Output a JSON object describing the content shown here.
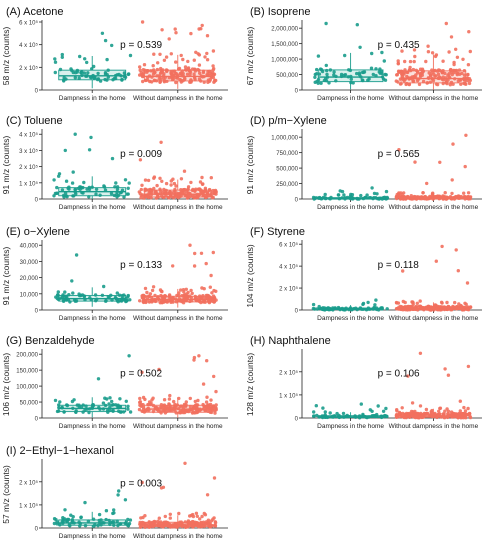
{
  "colors": {
    "group1": "#1a9c8c",
    "group1_fill": "#d8f0ec",
    "group2": "#f2705e",
    "group2_fill": "#fbe0dc",
    "axis": "#222222"
  },
  "chart_data": [
    {
      "type": "boxplot",
      "title": "(A) Acetone",
      "ylabel": "58 m/z (counts)",
      "categories": [
        "Dampness in the home",
        "Without dampness in the home"
      ],
      "yticks": [
        "0",
        "2 x 10⁵",
        "4 x 10⁵",
        "6 x 10⁵"
      ],
      "ylim": [
        0,
        600000
      ],
      "pvalue": "p = 0.539",
      "boxes": [
        {
          "q1": 90000,
          "median": 125000,
          "q3": 175000,
          "whisker_low": 15000,
          "whisker_high": 300000
        },
        {
          "q1": 80000,
          "median": 120000,
          "q3": 175000,
          "whisker_low": 10000,
          "whisker_high": 310000
        }
      ],
      "points_max": [
        500000,
        600000
      ]
    },
    {
      "type": "boxplot",
      "title": "(B) Isoprene",
      "ylabel": "67 m/z (counts)",
      "categories": [
        "Dampness in the home",
        "Without dampness in the home"
      ],
      "yticks": [
        "0",
        "500,000",
        "1,000,000",
        "1,500,000",
        "2,000,000"
      ],
      "ylim": [
        0,
        2200000
      ],
      "pvalue": "p = 0.435",
      "boxes": [
        {
          "q1": 270000,
          "median": 420000,
          "q3": 650000,
          "whisker_low": 20000,
          "whisker_high": 1200000
        },
        {
          "q1": 230000,
          "median": 370000,
          "q3": 620000,
          "whisker_low": 10000,
          "whisker_high": 1150000
        }
      ],
      "points_max": [
        2150000,
        2150000
      ]
    },
    {
      "type": "boxplot",
      "title": "(C) Toluene",
      "ylabel": "91 m/z (counts)",
      "categories": [
        "Dampness in the home",
        "Without dampness in the home"
      ],
      "yticks": [
        "0",
        "1 x 10⁵",
        "2 x 10⁵",
        "3 x 10⁵",
        "4 x 10⁵"
      ],
      "ylim": [
        0,
        420000
      ],
      "pvalue": "p = 0.009",
      "boxes": [
        {
          "q1": 20000,
          "median": 45000,
          "q3": 70000,
          "whisker_low": 0,
          "whisker_high": 140000
        },
        {
          "q1": 12000,
          "median": 30000,
          "q3": 55000,
          "whisker_low": 0,
          "whisker_high": 120000
        }
      ],
      "points_max": [
        400000,
        350000
      ]
    },
    {
      "type": "boxplot",
      "title": "(D) p/m−Xylene",
      "ylabel": "91 m/z (counts)",
      "categories": [
        "Dampness in the home",
        "Without dampness in the home"
      ],
      "yticks": [
        "0",
        "250,000",
        "500,000",
        "750,000",
        "1,000,000"
      ],
      "ylim": [
        0,
        1100000
      ],
      "pvalue": "p = 0.565",
      "boxes": [
        {
          "q1": 2000,
          "median": 8000,
          "q3": 22000,
          "whisker_low": 0,
          "whisker_high": 60000
        },
        {
          "q1": 2000,
          "median": 10000,
          "q3": 35000,
          "whisker_low": 0,
          "whisker_high": 90000
        }
      ],
      "points_max": [
        180000,
        1030000
      ]
    },
    {
      "type": "boxplot",
      "title": "(E) o−Xylene",
      "ylabel": "91 m/z (counts)",
      "categories": [
        "Dampness in the home",
        "Without dampness in the home"
      ],
      "yticks": [
        "0",
        "10,000",
        "20,000",
        "30,000",
        "40,000"
      ],
      "ylim": [
        0,
        42000
      ],
      "pvalue": "p = 0.133",
      "boxes": [
        {
          "q1": 5500,
          "median": 7000,
          "q3": 9000,
          "whisker_low": 2000,
          "whisker_high": 14000
        },
        {
          "q1": 5000,
          "median": 6500,
          "q3": 8500,
          "whisker_low": 1500,
          "whisker_high": 13000
        }
      ],
      "points_max": [
        34000,
        40000
      ]
    },
    {
      "type": "boxplot",
      "title": "(F) Styrene",
      "ylabel": "104 m/z (counts)",
      "categories": [
        "Dampness in the home",
        "Without dampness in the home"
      ],
      "yticks": [
        "0",
        "2 x 10⁵",
        "4 x 10⁵",
        "6 x 10⁵"
      ],
      "ylim": [
        0,
        620000
      ],
      "pvalue": "p = 0.118",
      "boxes": [
        {
          "q1": 3000,
          "median": 8000,
          "q3": 18000,
          "whisker_low": 0,
          "whisker_high": 45000
        },
        {
          "q1": 4000,
          "median": 12000,
          "q3": 30000,
          "whisker_low": 0,
          "whisker_high": 70000
        }
      ],
      "points_max": [
        90000,
        580000
      ]
    },
    {
      "type": "boxplot",
      "title": "(G) Benzaldehyde",
      "ylabel": "106 m/z (counts)",
      "categories": [
        "Dampness in the home",
        "Without dampness in the home"
      ],
      "yticks": [
        "0",
        "50,000",
        "100,000",
        "150,000",
        "200,000"
      ],
      "ylim": [
        0,
        210000
      ],
      "pvalue": "p = 0.502",
      "boxes": [
        {
          "q1": 20000,
          "median": 30000,
          "q3": 40000,
          "whisker_low": 2000,
          "whisker_high": 65000
        },
        {
          "q1": 18000,
          "median": 28000,
          "q3": 40000,
          "whisker_low": 1000,
          "whisker_high": 65000
        }
      ],
      "points_max": [
        195000,
        195000
      ]
    },
    {
      "type": "boxplot",
      "title": "(H) Naphthalene",
      "ylabel": "128 m/z (counts)",
      "categories": [
        "Dampness in the home",
        "Without dampness in the home"
      ],
      "yticks": [
        "0",
        "1 x 10⁵",
        "2 x 10⁵"
      ],
      "ylim": [
        0,
        290000
      ],
      "pvalue": "p = 0.106",
      "boxes": [
        {
          "q1": 2000,
          "median": 5000,
          "q3": 10000,
          "whisker_low": 0,
          "whisker_high": 25000
        },
        {
          "q1": 3000,
          "median": 8000,
          "q3": 18000,
          "whisker_low": 0,
          "whisker_high": 40000
        }
      ],
      "points_max": [
        60000,
        280000
      ]
    },
    {
      "type": "boxplot",
      "title": "(I) 2−Ethyl−1−hexanol",
      "ylabel": "57 m/z (counts)",
      "categories": [
        "Dampness in the home",
        "Without dampness in the home"
      ],
      "yticks": [
        "0",
        "1 x 10⁵",
        "2 x 10⁵"
      ],
      "ylim": [
        0,
        290000
      ],
      "pvalue": "p = 0.003",
      "boxes": [
        {
          "q1": 12000,
          "median": 22000,
          "q3": 35000,
          "whisker_low": 0,
          "whisker_high": 70000
        },
        {
          "q1": 6000,
          "median": 13000,
          "q3": 25000,
          "whisker_low": 0,
          "whisker_high": 55000
        }
      ],
      "points_max": [
        160000,
        280000
      ]
    }
  ]
}
